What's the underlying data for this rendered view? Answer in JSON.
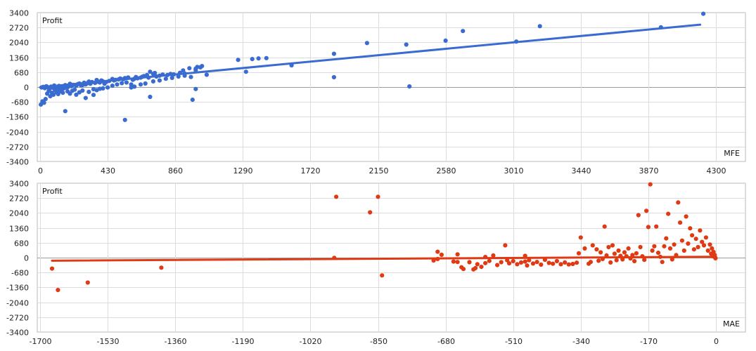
{
  "chart_data": [
    {
      "type": "scatter",
      "ylabel": "Profit",
      "xlabel": "MFE",
      "xlim": [
        0,
        4300
      ],
      "ylim": [
        -3400,
        3400
      ],
      "xticks": [
        0,
        430,
        860,
        1290,
        1720,
        2150,
        2580,
        3010,
        3440,
        3870,
        4300
      ],
      "yticks": [
        3400,
        2720,
        2040,
        1360,
        680,
        0,
        -680,
        -1360,
        -2040,
        -2720,
        -3400
      ],
      "grid": true,
      "color": "#3a6bd0",
      "trend_line": {
        "x": [
          0,
          4200
        ],
        "y": [
          -10,
          2850
        ]
      },
      "points": [
        [
          4220,
          3350
        ],
        [
          3950,
          2730
        ],
        [
          3180,
          2780
        ],
        [
          3030,
          2080
        ],
        [
          2690,
          2560
        ],
        [
          2580,
          2120
        ],
        [
          2330,
          1940
        ],
        [
          2080,
          2010
        ],
        [
          2350,
          30
        ],
        [
          1870,
          1520
        ],
        [
          1870,
          450
        ],
        [
          1600,
          990
        ],
        [
          1440,
          1320
        ],
        [
          1390,
          1310
        ],
        [
          1350,
          1280
        ],
        [
          1310,
          700
        ],
        [
          1260,
          1240
        ],
        [
          1060,
          560
        ],
        [
          1030,
          960
        ],
        [
          1020,
          900
        ],
        [
          990,
          840
        ],
        [
          990,
          770
        ],
        [
          1000,
          920
        ],
        [
          960,
          460
        ],
        [
          950,
          860
        ],
        [
          990,
          -90
        ],
        [
          970,
          -580
        ],
        [
          910,
          760
        ],
        [
          890,
          650
        ],
        [
          920,
          620
        ],
        [
          850,
          580
        ],
        [
          830,
          600
        ],
        [
          810,
          550
        ],
        [
          780,
          570
        ],
        [
          760,
          520
        ],
        [
          740,
          480
        ],
        [
          730,
          640
        ],
        [
          720,
          600
        ],
        [
          700,
          700
        ],
        [
          700,
          -450
        ],
        [
          690,
          430
        ],
        [
          680,
          550
        ],
        [
          660,
          500
        ],
        [
          650,
          470
        ],
        [
          640,
          430
        ],
        [
          620,
          400
        ],
        [
          610,
          460
        ],
        [
          600,
          380
        ],
        [
          590,
          330
        ],
        [
          580,
          120
        ],
        [
          560,
          440
        ],
        [
          540,
          410
        ],
        [
          530,
          360
        ],
        [
          510,
          390
        ],
        [
          500,
          350
        ],
        [
          480,
          330
        ],
        [
          470,
          300
        ],
        [
          460,
          370
        ],
        [
          440,
          280
        ],
        [
          420,
          230
        ],
        [
          410,
          150
        ],
        [
          400,
          260
        ],
        [
          390,
          300
        ],
        [
          380,
          210
        ],
        [
          370,
          240
        ],
        [
          360,
          320
        ],
        [
          350,
          190
        ],
        [
          340,
          -100
        ],
        [
          330,
          230
        ],
        [
          320,
          150
        ],
        [
          310,
          250
        ],
        [
          300,
          170
        ],
        [
          290,
          120
        ],
        [
          280,
          200
        ],
        [
          270,
          90
        ],
        [
          260,
          80
        ],
        [
          250,
          160
        ],
        [
          240,
          130
        ],
        [
          230,
          60
        ],
        [
          220,
          -120
        ],
        [
          210,
          100
        ],
        [
          200,
          40
        ],
        [
          190,
          150
        ],
        [
          180,
          20
        ],
        [
          170,
          -40
        ],
        [
          160,
          90
        ],
        [
          150,
          -60
        ],
        [
          140,
          30
        ],
        [
          130,
          -20
        ],
        [
          120,
          50
        ],
        [
          110,
          -80
        ],
        [
          100,
          10
        ],
        [
          90,
          70
        ],
        [
          80,
          -30
        ],
        [
          70,
          20
        ],
        [
          60,
          -90
        ],
        [
          50,
          -10
        ],
        [
          40,
          40
        ],
        [
          30,
          -50
        ],
        [
          20,
          10
        ],
        [
          10,
          -20
        ],
        [
          5,
          -800
        ],
        [
          15,
          -650
        ],
        [
          35,
          -550
        ],
        [
          25,
          -720
        ],
        [
          45,
          -300
        ],
        [
          55,
          -180
        ],
        [
          65,
          -420
        ],
        [
          75,
          -260
        ],
        [
          85,
          -350
        ],
        [
          95,
          -150
        ],
        [
          105,
          -240
        ],
        [
          115,
          -320
        ],
        [
          125,
          -200
        ],
        [
          135,
          -120
        ],
        [
          145,
          -260
        ],
        [
          160,
          -1100
        ],
        [
          175,
          -200
        ],
        [
          190,
          -300
        ],
        [
          205,
          -170
        ],
        [
          230,
          -350
        ],
        [
          250,
          -240
        ],
        [
          270,
          -160
        ],
        [
          290,
          -500
        ],
        [
          310,
          -220
        ],
        [
          340,
          -360
        ],
        [
          360,
          -140
        ],
        [
          380,
          -80
        ],
        [
          400,
          -60
        ],
        [
          430,
          -20
        ],
        [
          460,
          60
        ],
        [
          490,
          120
        ],
        [
          520,
          180
        ],
        [
          550,
          210
        ],
        [
          540,
          -1500
        ],
        [
          580,
          -20
        ],
        [
          600,
          20
        ],
        [
          640,
          120
        ],
        [
          670,
          160
        ],
        [
          720,
          260
        ],
        [
          760,
          300
        ],
        [
          800,
          380
        ],
        [
          840,
          420
        ],
        [
          880,
          480
        ],
        [
          920,
          520
        ]
      ]
    },
    {
      "type": "scatter",
      "ylabel": "Profit",
      "xlabel": "MAE",
      "xlim": [
        -1700,
        0
      ],
      "ylim": [
        -3400,
        3400
      ],
      "xticks": [
        -1700,
        -1530,
        -1360,
        -1190,
        -1020,
        -850,
        -680,
        -510,
        -340,
        -170,
        0
      ],
      "yticks": [
        3400,
        2720,
        2040,
        1360,
        680,
        0,
        -680,
        -1360,
        -2040,
        -2720,
        -3400
      ],
      "grid": true,
      "color": "#e03a14",
      "trend_line": {
        "x": [
          -1670,
          -10
        ],
        "y": [
          -140,
          40
        ]
      },
      "points": [
        [
          -1670,
          -500
        ],
        [
          -1655,
          -1480
        ],
        [
          -1580,
          -1140
        ],
        [
          -1395,
          -460
        ],
        [
          -955,
          2780
        ],
        [
          -870,
          2070
        ],
        [
          -850,
          2780
        ],
        [
          -840,
          -810
        ],
        [
          -710,
          -130
        ],
        [
          -700,
          270
        ],
        [
          -690,
          130
        ],
        [
          -660,
          -180
        ],
        [
          -650,
          -200
        ],
        [
          -640,
          -440
        ],
        [
          -635,
          -520
        ],
        [
          -620,
          -210
        ],
        [
          -610,
          -540
        ],
        [
          -605,
          -480
        ],
        [
          -600,
          -300
        ],
        [
          -590,
          -420
        ],
        [
          -580,
          -250
        ],
        [
          -570,
          -150
        ],
        [
          -560,
          100
        ],
        [
          -550,
          -340
        ],
        [
          -540,
          -210
        ],
        [
          -530,
          560
        ],
        [
          -525,
          -120
        ],
        [
          -520,
          -260
        ],
        [
          -510,
          -160
        ],
        [
          -500,
          -300
        ],
        [
          -490,
          -220
        ],
        [
          -480,
          -180
        ],
        [
          -475,
          -360
        ],
        [
          -470,
          -120
        ],
        [
          -460,
          -270
        ],
        [
          -450,
          -200
        ],
        [
          -440,
          -320
        ],
        [
          -430,
          -100
        ],
        [
          -420,
          -240
        ],
        [
          -410,
          -280
        ],
        [
          -400,
          -160
        ],
        [
          -390,
          -300
        ],
        [
          -380,
          -220
        ],
        [
          -370,
          -310
        ],
        [
          -360,
          -290
        ],
        [
          -350,
          -230
        ],
        [
          -345,
          200
        ],
        [
          -340,
          920
        ],
        [
          -330,
          420
        ],
        [
          -320,
          -280
        ],
        [
          -315,
          -200
        ],
        [
          -310,
          560
        ],
        [
          -300,
          380
        ],
        [
          -295,
          -140
        ],
        [
          -290,
          240
        ],
        [
          -285,
          -60
        ],
        [
          -280,
          1420
        ],
        [
          -275,
          100
        ],
        [
          -270,
          480
        ],
        [
          -265,
          -220
        ],
        [
          -260,
          560
        ],
        [
          -255,
          180
        ],
        [
          -250,
          -120
        ],
        [
          -245,
          320
        ],
        [
          -240,
          80
        ],
        [
          -235,
          -80
        ],
        [
          -230,
          240
        ],
        [
          -225,
          60
        ],
        [
          -220,
          420
        ],
        [
          -215,
          -40
        ],
        [
          -210,
          120
        ],
        [
          -205,
          -160
        ],
        [
          -200,
          200
        ],
        [
          -195,
          1940
        ],
        [
          -190,
          480
        ],
        [
          -185,
          60
        ],
        [
          -180,
          -100
        ],
        [
          -175,
          2140
        ],
        [
          -170,
          1400
        ],
        [
          -165,
          3350
        ],
        [
          -160,
          320
        ],
        [
          -155,
          520
        ],
        [
          -150,
          1420
        ],
        [
          -145,
          220
        ],
        [
          -140,
          40
        ],
        [
          -135,
          -200
        ],
        [
          -130,
          520
        ],
        [
          -125,
          880
        ],
        [
          -120,
          2000
        ],
        [
          -115,
          420
        ],
        [
          -110,
          -80
        ],
        [
          -105,
          600
        ],
        [
          -100,
          120
        ],
        [
          -95,
          2520
        ],
        [
          -90,
          1600
        ],
        [
          -85,
          780
        ],
        [
          -80,
          320
        ],
        [
          -75,
          1880
        ],
        [
          -70,
          640
        ],
        [
          -65,
          1340
        ],
        [
          -60,
          1020
        ],
        [
          -55,
          380
        ],
        [
          -50,
          860
        ],
        [
          -45,
          480
        ],
        [
          -40,
          1240
        ],
        [
          -35,
          720
        ],
        [
          -30,
          560
        ],
        [
          -25,
          920
        ],
        [
          -20,
          320
        ],
        [
          -15,
          600
        ],
        [
          -12,
          180
        ],
        [
          -10,
          420
        ],
        [
          -8,
          80
        ],
        [
          -6,
          260
        ],
        [
          -4,
          40
        ],
        [
          -3,
          120
        ],
        [
          -2,
          10
        ],
        [
          -1,
          -30
        ],
        [
          -960,
          -10
        ],
        [
          -700,
          -60
        ],
        [
          -650,
          150
        ],
        [
          -580,
          30
        ],
        [
          -480,
          80
        ]
      ]
    }
  ]
}
